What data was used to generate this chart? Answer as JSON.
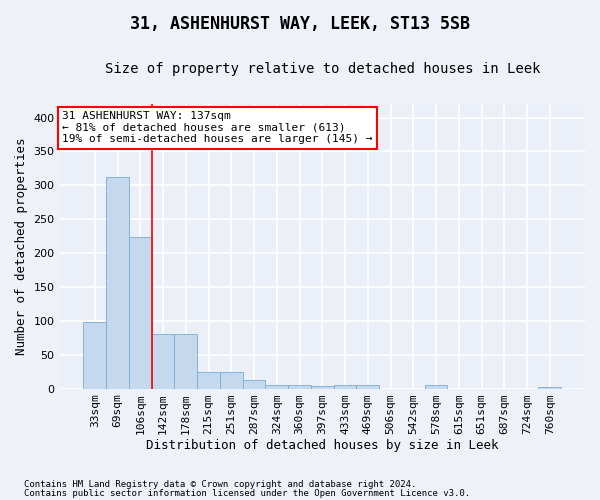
{
  "title": "31, ASHENHURST WAY, LEEK, ST13 5SB",
  "subtitle": "Size of property relative to detached houses in Leek",
  "xlabel": "Distribution of detached houses by size in Leek",
  "ylabel": "Number of detached properties",
  "footer1": "Contains HM Land Registry data © Crown copyright and database right 2024.",
  "footer2": "Contains public sector information licensed under the Open Government Licence v3.0.",
  "bin_labels": [
    "33sqm",
    "69sqm",
    "106sqm",
    "142sqm",
    "178sqm",
    "215sqm",
    "251sqm",
    "287sqm",
    "324sqm",
    "360sqm",
    "397sqm",
    "433sqm",
    "469sqm",
    "506sqm",
    "542sqm",
    "578sqm",
    "615sqm",
    "651sqm",
    "687sqm",
    "724sqm",
    "760sqm"
  ],
  "bar_values": [
    98,
    313,
    224,
    80,
    80,
    25,
    25,
    12,
    6,
    5,
    4,
    6,
    6,
    0,
    0,
    5,
    0,
    0,
    0,
    0,
    3
  ],
  "bar_color": "#c5d9ee",
  "bar_edge_color": "#7aadd4",
  "vline_color": "red",
  "vline_pos": 2.5,
  "annotation_text": "31 ASHENHURST WAY: 137sqm\n← 81% of detached houses are smaller (613)\n19% of semi-detached houses are larger (145) →",
  "annotation_box_facecolor": "white",
  "annotation_box_edgecolor": "red",
  "ylim_min": 0,
  "ylim_max": 420,
  "yticks": [
    0,
    50,
    100,
    150,
    200,
    250,
    300,
    350,
    400
  ],
  "fig_background_color": "#eef1f8",
  "plot_background_color": "#eaeff8",
  "title_fontsize": 12,
  "subtitle_fontsize": 10,
  "ylabel_fontsize": 9,
  "xlabel_fontsize": 9,
  "tick_fontsize": 8,
  "annotation_fontsize": 8,
  "footer_fontsize": 6.5,
  "grid_color": "white",
  "grid_linewidth": 1.2
}
